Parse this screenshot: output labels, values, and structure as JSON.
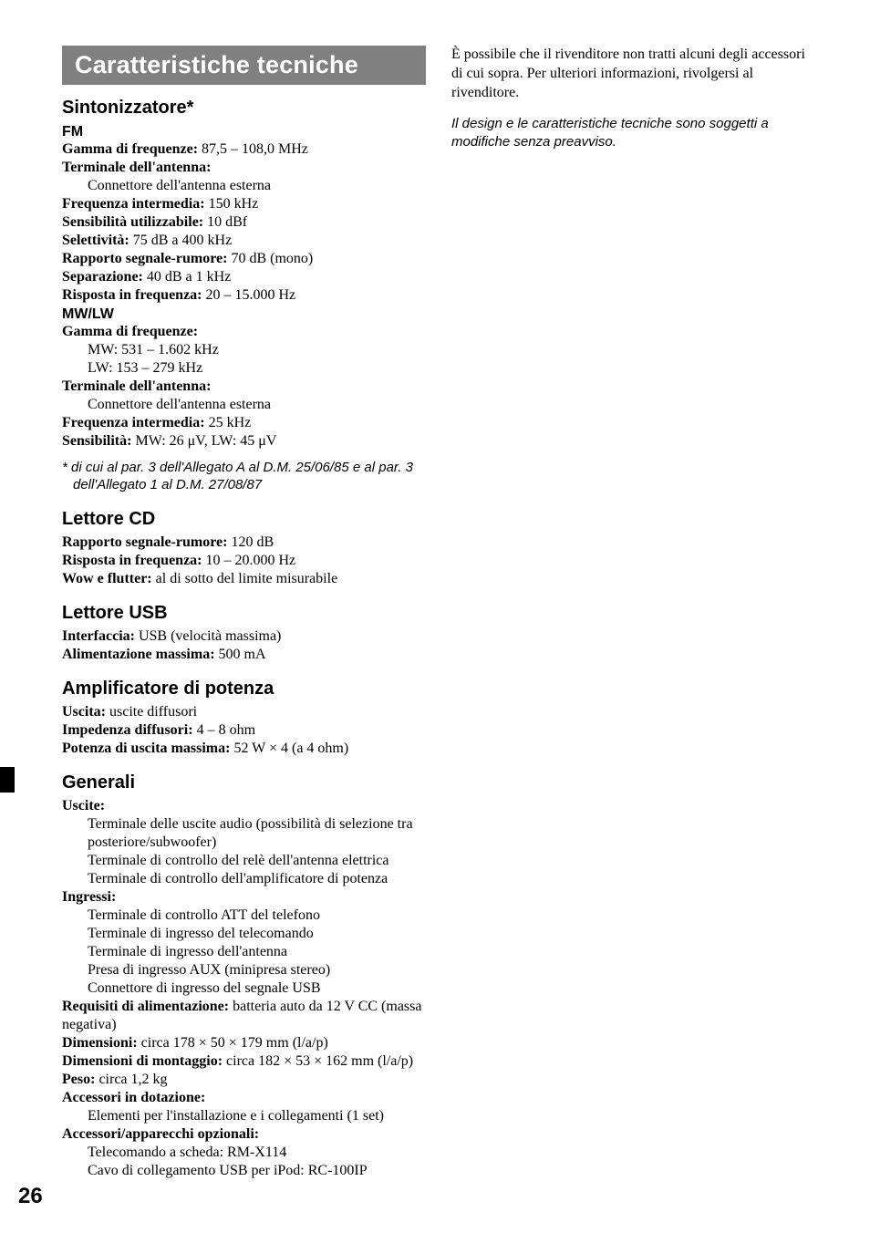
{
  "page_number": "26",
  "titlebar": {
    "text": "Caratteristiche tecniche"
  },
  "tuner": {
    "heading": "Sintonizzatore*",
    "fm": {
      "heading": "FM",
      "range_label": "Gamma di frequenze:",
      "range_value": " 87,5 – 108,0 MHz",
      "ant_term_label": "Terminale dell'antenna:",
      "ant_term_value": "Connettore dell'antenna esterna",
      "if_label": "Frequenza intermedia:",
      "if_value": " 150 kHz",
      "sens_label": "Sensibilità utilizzabile:",
      "sens_value": " 10 dBf",
      "sel_label": "Selettività:",
      "sel_value": " 75 dB a 400 kHz",
      "snr_label": "Rapporto segnale-rumore:",
      "snr_value": " 70 dB (mono)",
      "sep_label": "Separazione:",
      "sep_value": " 40 dB a 1 kHz",
      "fr_label": "Risposta in frequenza:",
      "fr_value": " 20 – 15.000 Hz"
    },
    "mwlw": {
      "heading": "MW/LW",
      "range_label": "Gamma di frequenze:",
      "mw": "MW: 531 – 1.602 kHz",
      "lw": "LW: 153 – 279 kHz",
      "ant_term_label": "Terminale dell'antenna:",
      "ant_term_value": "Connettore dell'antenna esterna",
      "if_label": "Frequenza intermedia:",
      "if_value": " 25 kHz",
      "sens_label": "Sensibilità:",
      "sens_value": " MW: 26 μV, LW: 45 μV"
    },
    "footnote": "* di cui al par. 3 dell'Allegato A al D.M. 25/06/85 e al par. 3 dell'Allegato 1 al D.M. 27/08/87"
  },
  "cd": {
    "heading": "Lettore CD",
    "snr_label": "Rapporto segnale-rumore:",
    "snr_value": " 120 dB",
    "fr_label": "Risposta in frequenza:",
    "fr_value": " 10 – 20.000 Hz",
    "wow_label": "Wow e flutter:",
    "wow_value": " al di sotto del limite misurabile"
  },
  "usb": {
    "heading": "Lettore USB",
    "iface_label": "Interfaccia:",
    "iface_value": " USB (velocità massima)",
    "power_label": "Alimentazione massima:",
    "power_value": " 500 mA"
  },
  "amp": {
    "heading": "Amplificatore di potenza",
    "out_label": "Uscita:",
    "out_value": " uscite diffusori",
    "imp_label": "Impedenza diffusori:",
    "imp_value": " 4 – 8 ohm",
    "max_label": "Potenza di uscita massima:",
    "max_value": " 52 W × 4 (a 4 ohm)"
  },
  "general": {
    "heading": "Generali",
    "outputs_label": "Uscite:",
    "out1": "Terminale delle uscite audio (possibilità di selezione tra posteriore/subwoofer)",
    "out2": "Terminale di controllo del relè dell'antenna elettrica",
    "out3": "Terminale di controllo dell'amplificatore di potenza",
    "inputs_label": "Ingressi:",
    "in1": "Terminale di controllo ATT del telefono",
    "in2": "Terminale di ingresso del telecomando",
    "in3": "Terminale di ingresso dell'antenna",
    "in4": "Presa di ingresso AUX (minipresa stereo)",
    "in5": "Connettore di ingresso del segnale USB",
    "power_label": "Requisiti di alimentazione:",
    "power_value": " batteria auto da 12 V CC (massa negativa)",
    "dim_label": "Dimensioni:",
    "dim_value": " circa 178 × 50 × 179 mm (l/a/p)",
    "mdim_label": "Dimensioni di montaggio:",
    "mdim_value": " circa 182 × 53 × 162 mm (l/a/p)",
    "weight_label": "Peso:",
    "weight_value": " circa 1,2 kg",
    "supplied_label": "Accessori in dotazione:",
    "supplied_value": "Elementi per l'installazione e i collegamenti (1 set)",
    "optional_label": "Accessori/apparecchi opzionali:",
    "opt1": "Telecomando a scheda: RM-X114",
    "opt2": "Cavo di collegamento USB per iPod: RC-100IP"
  },
  "right": {
    "para1": "È possibile che il rivenditore non tratti alcuni degli accessori di cui sopra. Per ulteriori informazioni, rivolgersi al rivenditore.",
    "para2": "Il design e le caratteristiche tecniche sono soggetti a modifiche senza preavviso."
  }
}
